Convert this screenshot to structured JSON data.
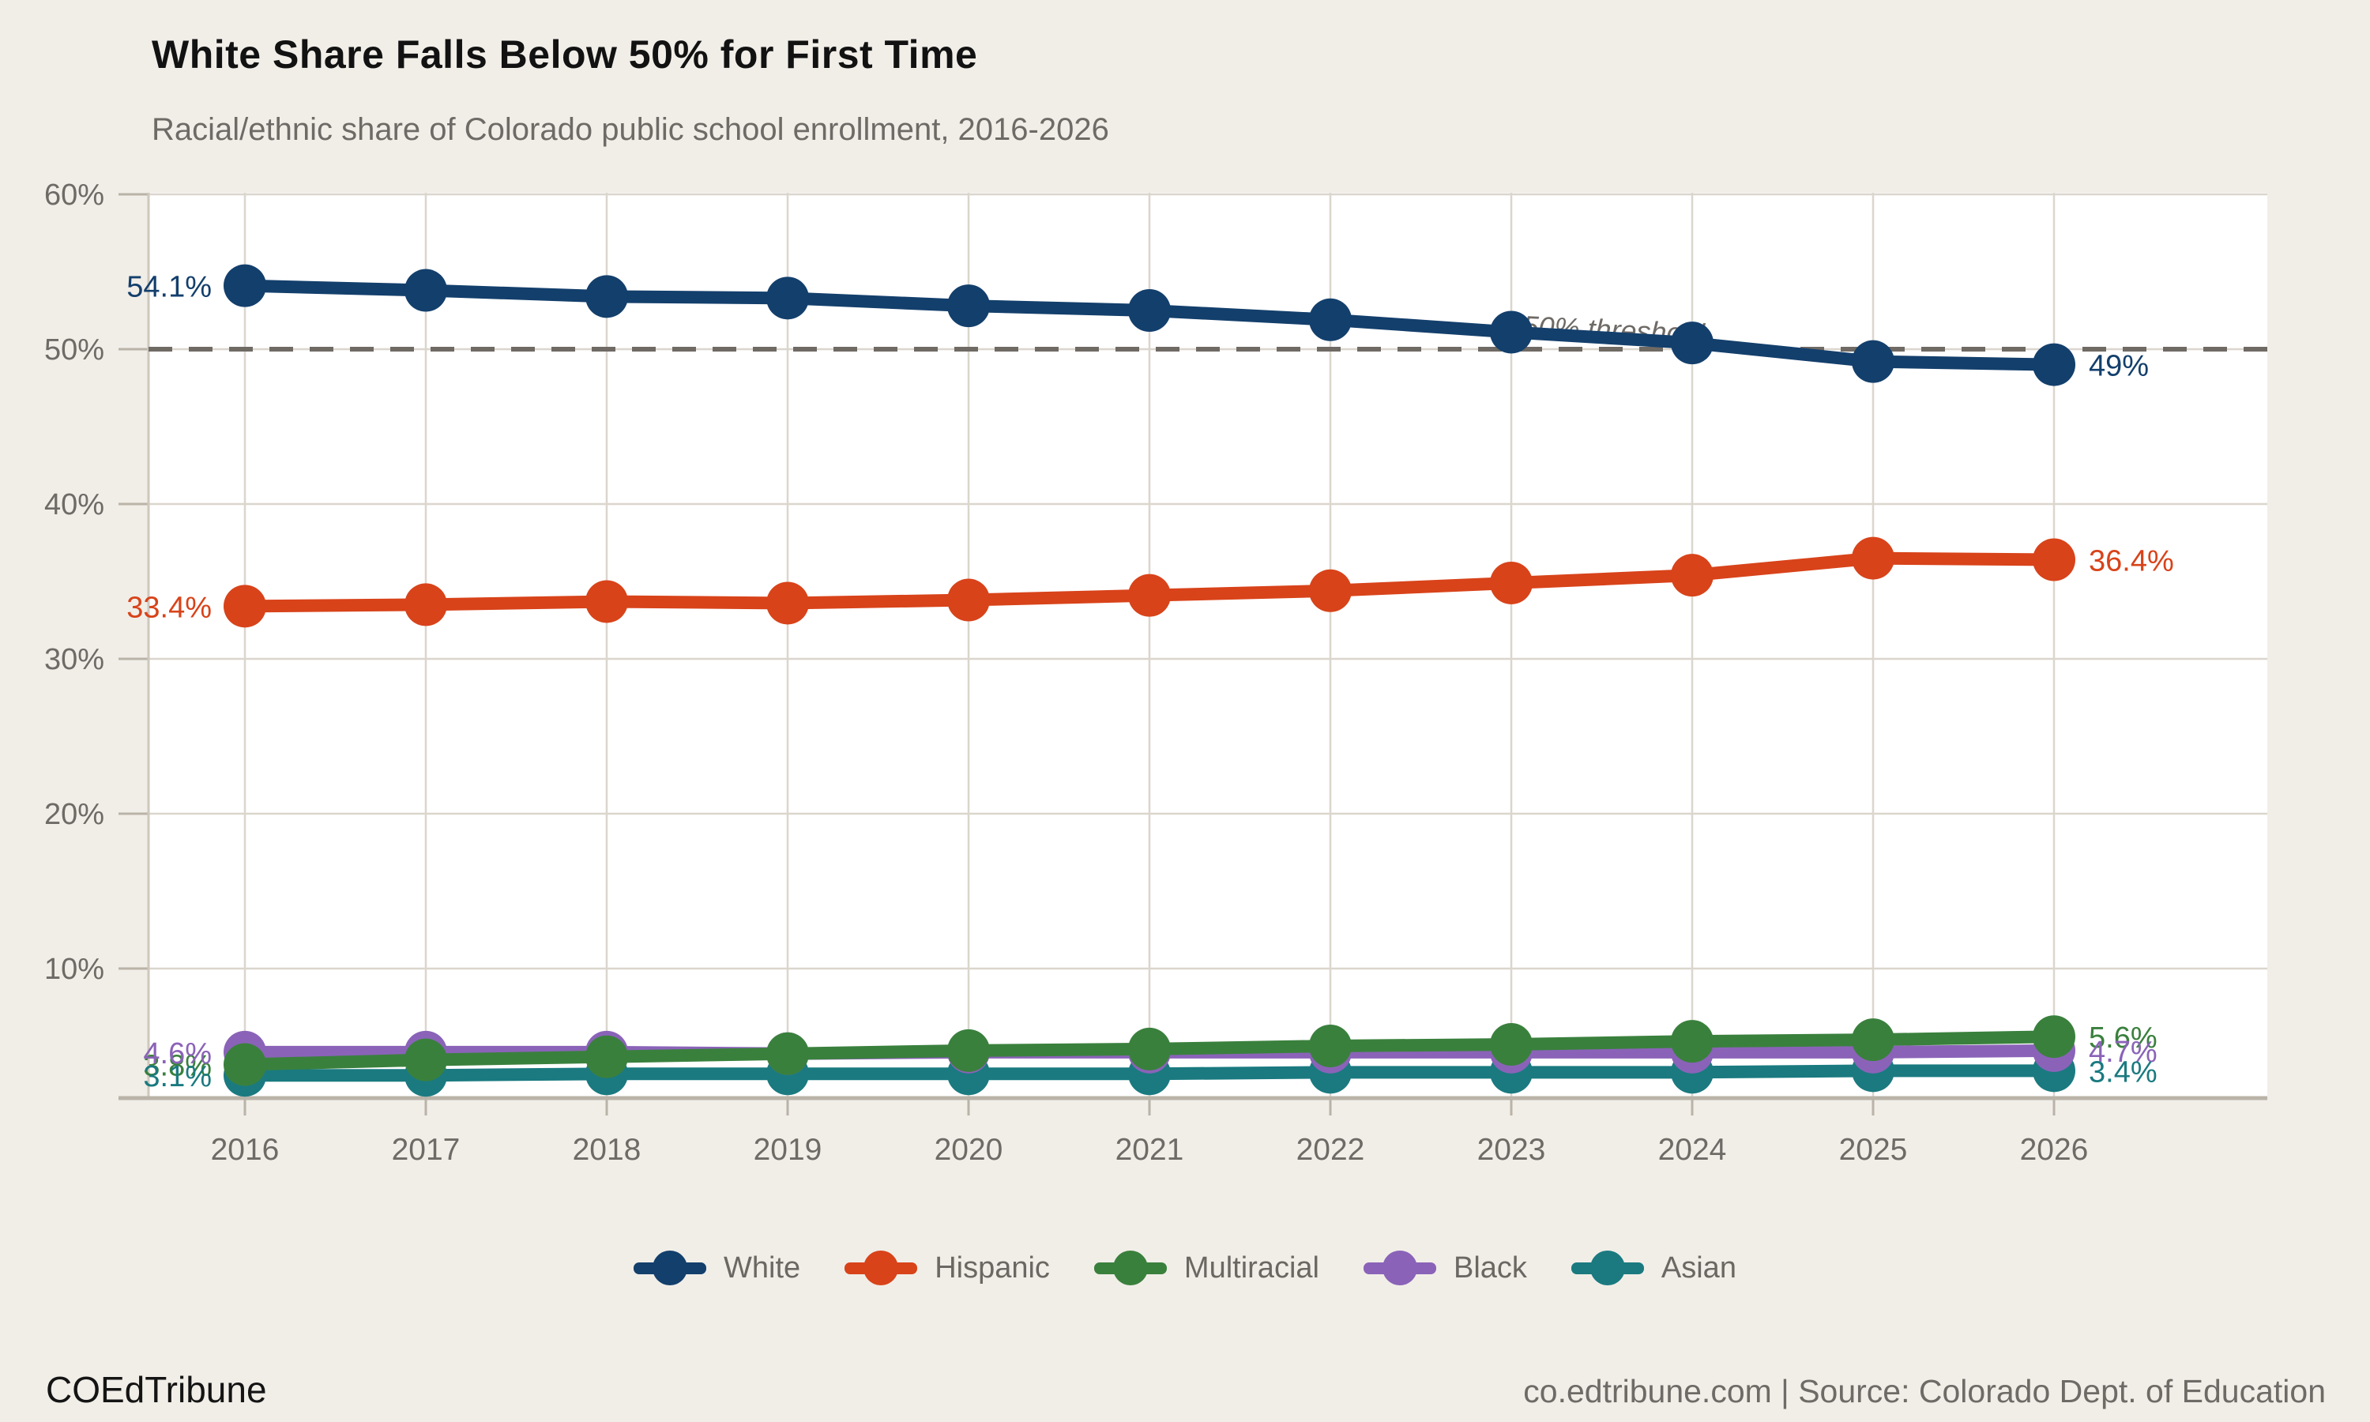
{
  "header": {
    "title": "White Share Falls Below 50% for First Time",
    "subtitle": "Racial/ethnic share of Colorado public school enrollment, 2016-2026"
  },
  "footer": {
    "brand": "COEdTribune",
    "source": "co.edtribune.com | Source: Colorado Dept. of Education"
  },
  "colors": {
    "background": "#f1eee8",
    "plot_background": "#ffffff",
    "gridline": "#dbd6cd",
    "axis_line": "#b9b3a8",
    "tick_text": "#6e6a66",
    "threshold_line": "#6f6a64",
    "white_series": "#133f6c",
    "hispanic_series": "#d8431a",
    "multiracial_series": "#3a803d",
    "black_series": "#8a63b8",
    "asian_series": "#1a7a80"
  },
  "chart_data": {
    "type": "line",
    "title": "White Share Falls Below 50% for First Time",
    "subtitle": "Racial/ethnic share of Colorado public school enrollment, 2016-2026",
    "x": [
      "2016",
      "2017",
      "2018",
      "2019",
      "2020",
      "2021",
      "2022",
      "2023",
      "2024",
      "2025",
      "2026"
    ],
    "series": [
      {
        "name": "White",
        "color": "#133f6c",
        "values": [
          54.1,
          53.8,
          53.4,
          53.3,
          52.8,
          52.5,
          51.9,
          51.1,
          50.4,
          49.2,
          49.0
        ],
        "start_label": "54.1%",
        "end_label": "49%"
      },
      {
        "name": "Hispanic",
        "color": "#d8431a",
        "values": [
          33.4,
          33.5,
          33.7,
          33.6,
          33.8,
          34.1,
          34.4,
          34.9,
          35.4,
          36.5,
          36.4
        ],
        "start_label": "33.4%",
        "end_label": "36.4%"
      },
      {
        "name": "Multiracial",
        "color": "#3a803d",
        "values": [
          3.8,
          4.1,
          4.3,
          4.5,
          4.7,
          4.8,
          5.0,
          5.1,
          5.3,
          5.4,
          5.6
        ],
        "start_label": "3.8%",
        "end_label": "5.6%"
      },
      {
        "name": "Black",
        "color": "#8a63b8",
        "values": [
          4.6,
          4.6,
          4.6,
          4.5,
          4.6,
          4.6,
          4.6,
          4.6,
          4.6,
          4.6,
          4.7
        ],
        "start_label": "4.6%",
        "end_label": "4.7%"
      },
      {
        "name": "Asian",
        "color": "#1a7a80",
        "values": [
          3.1,
          3.1,
          3.2,
          3.2,
          3.2,
          3.2,
          3.3,
          3.3,
          3.3,
          3.4,
          3.4
        ],
        "start_label": "3.1%",
        "end_label": "3.4%"
      }
    ],
    "y_ticks": [
      10,
      20,
      30,
      40,
      50,
      60
    ],
    "y_tick_labels": [
      "10%",
      "20%",
      "30%",
      "40%",
      "50%",
      "60%"
    ],
    "ylim": [
      1.6,
      60
    ],
    "threshold": {
      "value": 50,
      "label": "50% threshold"
    },
    "grid": true,
    "legend_position": "bottom",
    "legend": [
      "White",
      "Hispanic",
      "Multiracial",
      "Black",
      "Asian"
    ]
  }
}
